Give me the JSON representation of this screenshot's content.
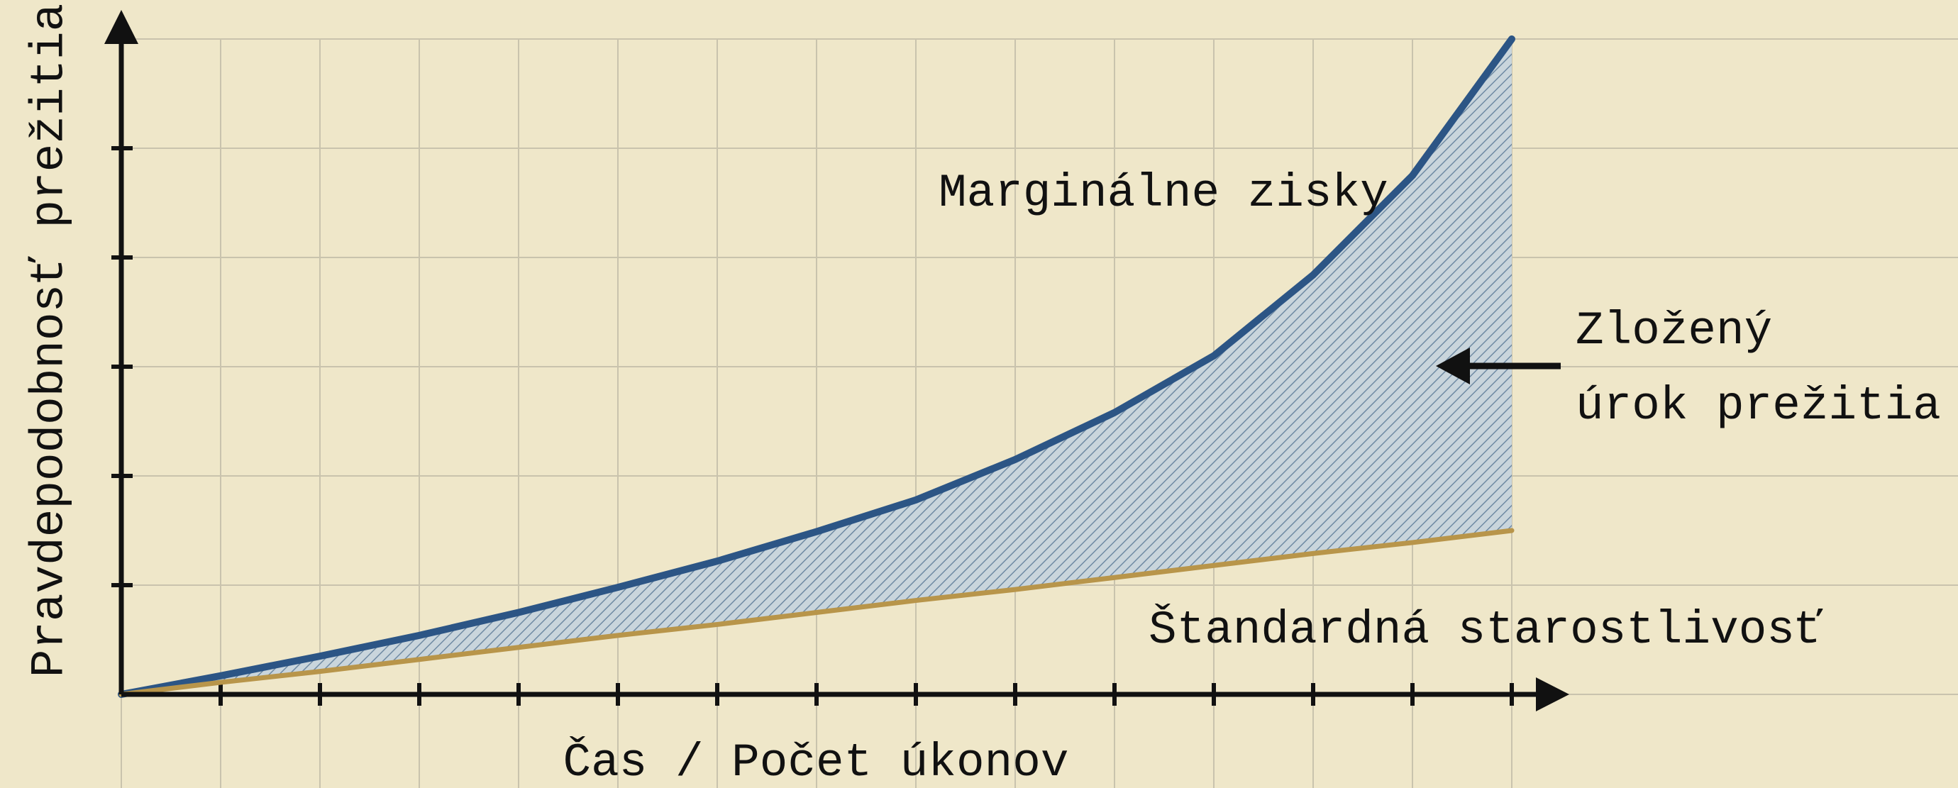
{
  "chart_data": {
    "type": "line",
    "x_label": "Čas / Počet úkonov",
    "y_label": "Pravdepodobnosť prežitia",
    "x": [
      0,
      1,
      2,
      3,
      4,
      5,
      6,
      7,
      8,
      9,
      10,
      11,
      12,
      13,
      14
    ],
    "series": [
      {
        "name": "Marginálne zisky",
        "color": "#2c5585",
        "values": [
          0,
          0.17,
          0.35,
          0.54,
          0.75,
          0.98,
          1.22,
          1.49,
          1.78,
          2.15,
          2.58,
          3.1,
          3.84,
          4.75,
          6.0
        ]
      },
      {
        "name": "Štandardná starostlivosť",
        "color": "#b8954a",
        "values": [
          0,
          0.11,
          0.21,
          0.32,
          0.43,
          0.54,
          0.64,
          0.75,
          0.86,
          0.96,
          1.07,
          1.18,
          1.29,
          1.39,
          1.5
        ]
      }
    ],
    "annotation": [
      "Zložený",
      "úrok prežitia"
    ],
    "xlim": [
      0,
      14
    ],
    "ylim": [
      0,
      6
    ],
    "xticks": [
      0,
      1,
      2,
      3,
      4,
      5,
      6,
      7,
      8,
      9,
      10,
      11,
      12,
      13,
      14
    ],
    "yticks": [
      0,
      1,
      2,
      3,
      4,
      5,
      6
    ],
    "grid": true
  }
}
